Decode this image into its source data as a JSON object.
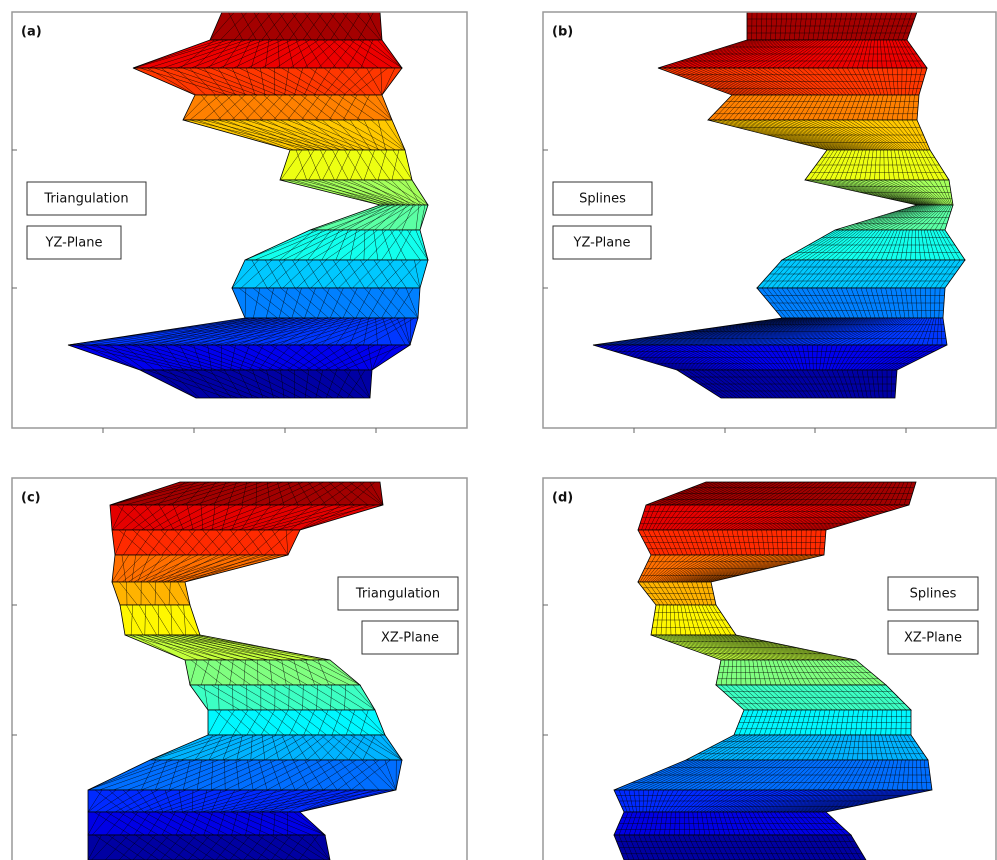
{
  "panels": [
    {
      "label": "(a)",
      "method": "Triangulation",
      "plane": "YZ-Plane"
    },
    {
      "label": "(b)",
      "method": "Splines",
      "plane": "YZ-Plane"
    },
    {
      "label": "(c)",
      "method": "Triangulation",
      "plane": "XZ-Plane"
    },
    {
      "label": "(d)",
      "method": "Splines",
      "plane": "XZ-Plane"
    }
  ]
}
